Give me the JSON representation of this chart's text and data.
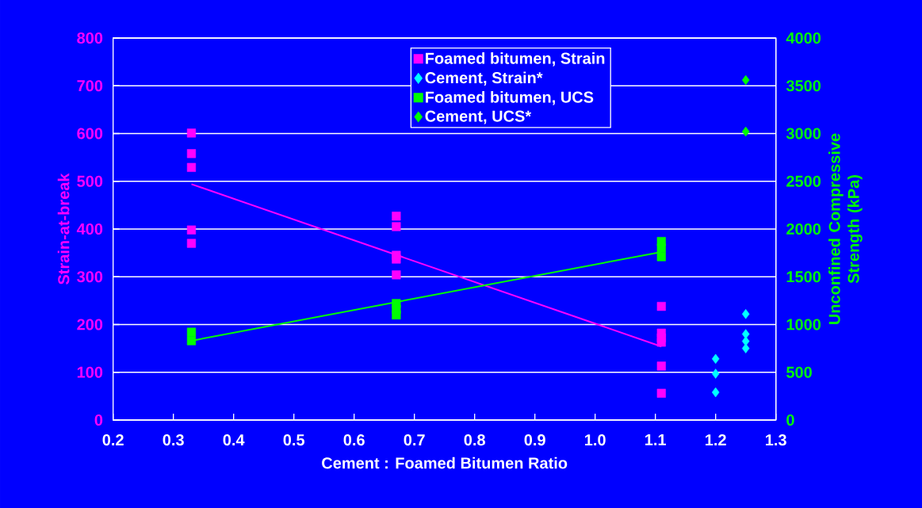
{
  "chart_data": {
    "type": "scatter",
    "xlabel": "Cement : Foamed Bitumen Ratio",
    "ylabel": "Strain-at-break",
    "y2label": "Unconfined Compressive Strength (kPa)",
    "xlim": [
      0.2,
      1.3
    ],
    "xticks": [
      0.2,
      0.3,
      0.4,
      0.5,
      0.6,
      0.7,
      0.8,
      0.9,
      {
        "value": 1.0,
        "label": "1.0"
      },
      1.1,
      1.2,
      1.3
    ],
    "ylim": [
      0,
      800
    ],
    "yticks": [
      0,
      100,
      200,
      300,
      400,
      500,
      600,
      700,
      800
    ],
    "y2lim": [
      0,
      4000
    ],
    "y2ticks": [
      0,
      500,
      1000,
      1500,
      2000,
      2500,
      3000,
      3500,
      4000
    ],
    "grid": "y",
    "legend": "top",
    "series": [
      {
        "name": "Foamed bitumen, Strain",
        "marker": "square",
        "color": "#ff00ff",
        "x": [
          0.33,
          0.33,
          0.33,
          0.33,
          0.33,
          0.67,
          0.67,
          0.67,
          0.67,
          0.67,
          1.11,
          1.11,
          1.11,
          1.11,
          1.11,
          1.11
        ],
        "values": [
          601,
          558,
          529,
          398,
          370,
          427,
          405,
          345,
          337,
          304,
          238,
          182,
          172,
          163,
          113,
          56
        ]
      },
      {
        "name": "Cement, Strain*",
        "marker": "diamond",
        "color": "#00ffff",
        "x": [
          1.2,
          1.2,
          1.2,
          1.25,
          1.25,
          1.25,
          1.25
        ],
        "values": [
          128,
          97,
          58,
          222,
          180,
          165,
          150
        ]
      },
      {
        "name": "Foamed bitumen, UCS",
        "marker": "square",
        "color": "#00ff00",
        "axis": "y2",
        "x": [
          0.33,
          0.33,
          0.67,
          0.67,
          0.67,
          1.11,
          1.11,
          1.11
        ],
        "values": [
          920,
          830,
          1220,
          1160,
          1100,
          1870,
          1800,
          1710
        ]
      },
      {
        "name": "Cement, UCS*",
        "marker": "diamond",
        "color": "#00ff00",
        "axis": "y2",
        "x": [
          1.25,
          1.25
        ],
        "values": [
          3560,
          3020
        ]
      },
      {
        "type": "line",
        "marker": "none",
        "color": "#ff00ff",
        "x": [
          0.33,
          1.11
        ],
        "values": [
          494,
          154
        ]
      },
      {
        "type": "line",
        "marker": "none",
        "color": "#00ff00",
        "axis": "y2",
        "x": [
          0.33,
          1.11
        ],
        "values": [
          830,
          1760
        ]
      }
    ]
  }
}
